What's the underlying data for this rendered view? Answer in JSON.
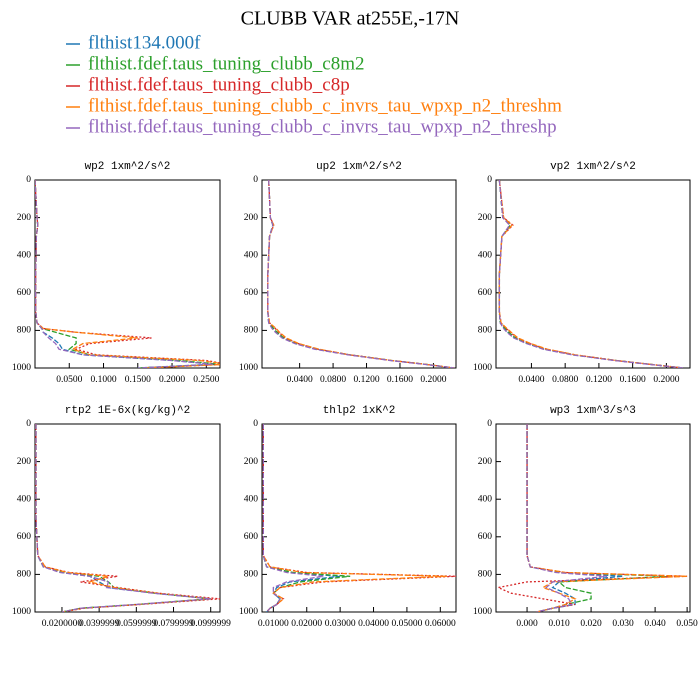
{
  "title": "CLUBB VAR at255E,-17N",
  "legend": [
    {
      "name": "flthist134.000f",
      "color": "#1f77b4"
    },
    {
      "name": "flthist.fdef.taus_tuning_clubb_c8m2",
      "color": "#2ca02c"
    },
    {
      "name": "flthist.fdef.taus_tuning_clubb_c8p",
      "color": "#d62728"
    },
    {
      "name": "flthist.fdef.taus_tuning_clubb_c_invrs_tau_wpxp_n2_threshm",
      "color": "#ff7f0e"
    },
    {
      "name": "flthist.fdef.taus_tuning_clubb_c_invrs_tau_wpxp_n2_threshp",
      "color": "#9467bd"
    }
  ],
  "chart_data": [
    {
      "type": "line",
      "title": "wp2  1xm^2/s^2",
      "y": [
        0,
        200,
        240,
        300,
        500,
        700,
        760,
        790,
        810,
        840,
        870,
        900,
        930,
        960,
        980,
        1000
      ],
      "ylim": [
        1000,
        0
      ],
      "yticks": [
        0,
        200,
        400,
        600,
        800,
        1000
      ],
      "xlim": [
        0,
        0.27
      ],
      "xticks": [
        {
          "value": 0.05,
          "label": "0.0500"
        },
        {
          "value": 0.1,
          "label": "0.1000"
        },
        {
          "value": 0.15,
          "label": "0.1500"
        },
        {
          "value": 0.2,
          "label": "0.2000"
        },
        {
          "value": 0.25,
          "label": "0.2500"
        }
      ],
      "series": [
        {
          "values": [
            0,
            0.003,
            0.004,
            0.002,
            0.001,
            0.001,
            0.003,
            0.01,
            0.012,
            0.025,
            0.035,
            0.04,
            0.07,
            0.2,
            0.26,
            0.15
          ]
        },
        {
          "values": [
            0,
            0.003,
            0.004,
            0.002,
            0.001,
            0.001,
            0.003,
            0.01,
            0.03,
            0.06,
            0.06,
            0.05,
            0.08,
            0.21,
            0.27,
            0.15
          ]
        },
        {
          "values": [
            0,
            0.003,
            0.004,
            0.002,
            0.001,
            0.001,
            0.003,
            0.012,
            0.06,
            0.17,
            0.08,
            0.06,
            0.09,
            0.25,
            0.28,
            0.16
          ]
        },
        {
          "values": [
            0,
            0.003,
            0.004,
            0.002,
            0.001,
            0.001,
            0.003,
            0.012,
            0.06,
            0.15,
            0.07,
            0.055,
            0.08,
            0.24,
            0.28,
            0.16
          ]
        },
        {
          "values": [
            0,
            0.003,
            0.004,
            0.002,
            0.001,
            0.001,
            0.003,
            0.01,
            0.012,
            0.02,
            0.03,
            0.035,
            0.07,
            0.2,
            0.26,
            0.15
          ]
        }
      ]
    },
    {
      "type": "line",
      "title": "up2  1xm^2/s^2",
      "y": [
        0,
        200,
        240,
        300,
        500,
        700,
        760,
        790,
        810,
        840,
        870,
        900,
        930,
        960,
        980,
        1000
      ],
      "ylim": [
        1000,
        0
      ],
      "yticks": [
        0,
        200,
        400,
        600,
        800,
        1000
      ],
      "xlim": [
        -0.005,
        0.227
      ],
      "xticks": [
        {
          "value": 0.04,
          "label": "0.0400"
        },
        {
          "value": 0.08,
          "label": "0.0800"
        },
        {
          "value": 0.12,
          "label": "0.1200"
        },
        {
          "value": 0.16,
          "label": "0.1600"
        },
        {
          "value": 0.2,
          "label": "0.2000"
        }
      ],
      "series": [
        {
          "values": [
            0.003,
            0.005,
            0.008,
            0.004,
            0.002,
            0.002,
            0.003,
            0.008,
            0.012,
            0.02,
            0.035,
            0.06,
            0.1,
            0.15,
            0.19,
            0.225
          ]
        },
        {
          "values": [
            0.003,
            0.005,
            0.008,
            0.004,
            0.002,
            0.002,
            0.003,
            0.009,
            0.013,
            0.021,
            0.036,
            0.06,
            0.1,
            0.15,
            0.19,
            0.225
          ]
        },
        {
          "values": [
            0.003,
            0.005,
            0.009,
            0.004,
            0.002,
            0.002,
            0.004,
            0.011,
            0.015,
            0.023,
            0.038,
            0.062,
            0.1,
            0.15,
            0.19,
            0.225
          ]
        },
        {
          "values": [
            0.003,
            0.005,
            0.009,
            0.004,
            0.002,
            0.002,
            0.004,
            0.012,
            0.016,
            0.024,
            0.039,
            0.063,
            0.1,
            0.15,
            0.19,
            0.225
          ]
        },
        {
          "values": [
            0.003,
            0.005,
            0.008,
            0.004,
            0.002,
            0.002,
            0.003,
            0.007,
            0.011,
            0.019,
            0.034,
            0.058,
            0.098,
            0.148,
            0.188,
            0.225
          ]
        }
      ]
    },
    {
      "type": "line",
      "title": "vp2  1xm^2/s^2",
      "y": [
        0,
        200,
        240,
        300,
        500,
        700,
        760,
        790,
        810,
        840,
        870,
        900,
        930,
        960,
        980,
        1000
      ],
      "ylim": [
        1000,
        0
      ],
      "yticks": [
        0,
        200,
        400,
        600,
        800,
        1000
      ],
      "xlim": [
        -0.002,
        0.228
      ],
      "xticks": [
        {
          "value": 0.04,
          "label": "0.0400"
        },
        {
          "value": 0.08,
          "label": "0.0800"
        },
        {
          "value": 0.12,
          "label": "0.1200"
        },
        {
          "value": 0.16,
          "label": "0.1600"
        },
        {
          "value": 0.2,
          "label": "0.2000"
        }
      ],
      "series": [
        {
          "values": [
            0.002,
            0.006,
            0.015,
            0.005,
            0.002,
            0.002,
            0.003,
            0.008,
            0.012,
            0.02,
            0.035,
            0.055,
            0.09,
            0.14,
            0.18,
            0.22
          ]
        },
        {
          "values": [
            0.002,
            0.006,
            0.015,
            0.005,
            0.002,
            0.002,
            0.003,
            0.009,
            0.013,
            0.021,
            0.036,
            0.056,
            0.09,
            0.14,
            0.18,
            0.22
          ]
        },
        {
          "values": [
            0.002,
            0.007,
            0.018,
            0.005,
            0.002,
            0.002,
            0.004,
            0.01,
            0.015,
            0.023,
            0.038,
            0.058,
            0.092,
            0.14,
            0.18,
            0.22
          ]
        },
        {
          "values": [
            0.002,
            0.007,
            0.017,
            0.005,
            0.002,
            0.002,
            0.004,
            0.011,
            0.016,
            0.024,
            0.039,
            0.059,
            0.092,
            0.14,
            0.18,
            0.22
          ]
        },
        {
          "values": [
            0.002,
            0.006,
            0.014,
            0.005,
            0.002,
            0.002,
            0.003,
            0.007,
            0.011,
            0.019,
            0.034,
            0.054,
            0.088,
            0.138,
            0.178,
            0.22
          ]
        }
      ]
    },
    {
      "type": "line",
      "title": "rtp2  1E-6x(kg/kg)^2",
      "y": [
        0,
        200,
        240,
        300,
        500,
        700,
        760,
        790,
        810,
        840,
        870,
        900,
        930,
        960,
        980,
        1000
      ],
      "ylim": [
        1000,
        0
      ],
      "yticks": [
        0,
        200,
        400,
        600,
        800,
        1000
      ],
      "xlim": [
        0.0055,
        0.105
      ],
      "xticks": [
        {
          "value": 0.02,
          "label": "0.0200000"
        },
        {
          "value": 0.04,
          "label": "0.0399999"
        },
        {
          "value": 0.06,
          "label": "0.0599999"
        },
        {
          "value": 0.08,
          "label": "0.0799999"
        },
        {
          "value": 0.1,
          "label": "0.0999999"
        }
      ],
      "series": [
        {
          "values": [
            0.006,
            0.006,
            0.006,
            0.006,
            0.006,
            0.007,
            0.01,
            0.02,
            0.035,
            0.04,
            0.045,
            0.07,
            0.1,
            0.06,
            0.03,
            0.02
          ]
        },
        {
          "values": [
            0.006,
            0.006,
            0.006,
            0.006,
            0.006,
            0.007,
            0.01,
            0.02,
            0.04,
            0.045,
            0.048,
            0.07,
            0.1,
            0.06,
            0.03,
            0.02
          ]
        },
        {
          "values": [
            0.006,
            0.006,
            0.006,
            0.006,
            0.006,
            0.007,
            0.011,
            0.024,
            0.05,
            0.03,
            0.05,
            0.072,
            0.105,
            0.062,
            0.032,
            0.02
          ]
        },
        {
          "values": [
            0.006,
            0.006,
            0.006,
            0.006,
            0.006,
            0.007,
            0.011,
            0.023,
            0.045,
            0.035,
            0.048,
            0.071,
            0.1,
            0.061,
            0.031,
            0.02
          ]
        },
        {
          "values": [
            0.006,
            0.006,
            0.006,
            0.006,
            0.006,
            0.007,
            0.01,
            0.019,
            0.035,
            0.045,
            0.044,
            0.069,
            0.1,
            0.06,
            0.03,
            0.02
          ]
        }
      ]
    },
    {
      "type": "line",
      "title": "thlp2  1xK^2",
      "y": [
        0,
        200,
        240,
        300,
        500,
        700,
        760,
        790,
        810,
        840,
        870,
        900,
        930,
        960,
        980,
        1000
      ],
      "ylim": [
        1000,
        0
      ],
      "yticks": [
        0,
        200,
        400,
        600,
        800,
        1000
      ],
      "xlim": [
        0.0066,
        0.0647
      ],
      "xticks": [
        {
          "value": 0.01,
          "label": "0.01000"
        },
        {
          "value": 0.02,
          "label": "0.02000"
        },
        {
          "value": 0.03,
          "label": "0.03000"
        },
        {
          "value": 0.04,
          "label": "0.04000"
        },
        {
          "value": 0.05,
          "label": "0.05000"
        },
        {
          "value": 0.06,
          "label": "0.06000"
        }
      ],
      "series": [
        {
          "values": [
            0.007,
            0.007,
            0.007,
            0.007,
            0.007,
            0.007,
            0.008,
            0.015,
            0.03,
            0.015,
            0.011,
            0.01,
            0.012,
            0.011,
            0.009,
            0.008
          ]
        },
        {
          "values": [
            0.007,
            0.007,
            0.007,
            0.007,
            0.007,
            0.007,
            0.008,
            0.016,
            0.033,
            0.018,
            0.012,
            0.01,
            0.012,
            0.011,
            0.009,
            0.008
          ]
        },
        {
          "values": [
            0.007,
            0.007,
            0.007,
            0.007,
            0.007,
            0.007,
            0.009,
            0.02,
            0.065,
            0.025,
            0.012,
            0.01,
            0.013,
            0.011,
            0.009,
            0.008
          ]
        },
        {
          "values": [
            0.007,
            0.007,
            0.007,
            0.007,
            0.007,
            0.007,
            0.009,
            0.019,
            0.062,
            0.022,
            0.012,
            0.01,
            0.013,
            0.011,
            0.009,
            0.008
          ]
        },
        {
          "values": [
            0.007,
            0.007,
            0.007,
            0.007,
            0.007,
            0.007,
            0.008,
            0.014,
            0.025,
            0.014,
            0.01,
            0.01,
            0.012,
            0.011,
            0.009,
            0.008
          ]
        }
      ]
    },
    {
      "type": "line",
      "title": "wp3  1xm^3/s^3",
      "y": [
        0,
        200,
        240,
        300,
        500,
        700,
        760,
        790,
        810,
        840,
        870,
        900,
        930,
        960,
        980,
        1000
      ],
      "ylim": [
        1000,
        0
      ],
      "yticks": [
        0,
        200,
        400,
        600,
        800,
        1000
      ],
      "xlim": [
        -0.0097,
        0.0509
      ],
      "xticks": [
        {
          "value": 0,
          "label": "0.000"
        },
        {
          "value": 0.01,
          "label": "0.010"
        },
        {
          "value": 0.02,
          "label": "0.020"
        },
        {
          "value": 0.03,
          "label": "0.030"
        },
        {
          "value": 0.04,
          "label": "0.040"
        },
        {
          "value": 0.05,
          "label": "0.050"
        }
      ],
      "series": [
        {
          "values": [
            0,
            0,
            0,
            0,
            0,
            0,
            0.001,
            0.01,
            0.03,
            0.01,
            0.008,
            0.012,
            0.015,
            0.015,
            0.008,
            0.003
          ]
        },
        {
          "values": [
            0,
            0,
            0,
            0,
            0,
            0,
            0.001,
            0.01,
            0.045,
            0.01,
            0.012,
            0.02,
            0.02,
            0.012,
            0.008,
            0.003
          ]
        },
        {
          "values": [
            0,
            0,
            0,
            0,
            0,
            0,
            0.001,
            0.012,
            0.05,
            0,
            -0.009,
            -0.005,
            0.005,
            0.015,
            0.008,
            0.003
          ]
        },
        {
          "values": [
            0,
            0,
            0,
            0,
            0,
            0,
            0.001,
            0.012,
            0.05,
            0.008,
            0.005,
            0.01,
            0.015,
            0.012,
            0.008,
            0.003
          ]
        },
        {
          "values": [
            0,
            0,
            0,
            0,
            0,
            0,
            0.001,
            0.009,
            0.025,
            0.008,
            0.006,
            0.01,
            0.013,
            0.014,
            0.008,
            0.003
          ]
        }
      ]
    }
  ]
}
